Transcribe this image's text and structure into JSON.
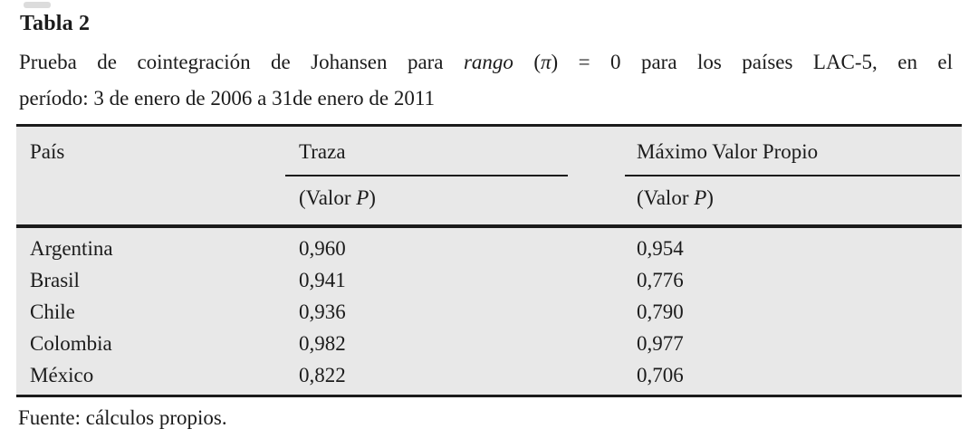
{
  "title": "Tabla 2",
  "caption": {
    "line1_parts": [
      {
        "text": "Prueba de cointegración de Johansen para ",
        "italic": false
      },
      {
        "text": "rango",
        "italic": true
      },
      {
        "text": " (",
        "italic": false
      },
      {
        "text": "π",
        "italic": true
      },
      {
        "text": ") = 0 para los países LAC-5, en el",
        "italic": false
      }
    ],
    "line2": "período: 3 de enero de 2006 a 31de enero de 2011"
  },
  "table": {
    "background": "#e8e8e8",
    "rule_color": "#1b1b1b",
    "text_color": "#1b1b1b",
    "columns": [
      {
        "header": "País"
      },
      {
        "header": "Traza"
      },
      {
        "header": "Máximo Valor Propio"
      }
    ],
    "valor_p": {
      "prefix": "(Valor ",
      "italic": "P",
      "suffix": ")"
    },
    "rows": [
      {
        "pais": "Argentina",
        "traza": "0,960",
        "max_valor_propio": "0,954"
      },
      {
        "pais": "Brasil",
        "traza": "0,941",
        "max_valor_propio": "0,776"
      },
      {
        "pais": "Chile",
        "traza": "0,936",
        "max_valor_propio": "0,790"
      },
      {
        "pais": "Colombia",
        "traza": "0,982",
        "max_valor_propio": "0,977"
      },
      {
        "pais": "México",
        "traza": "0,822",
        "max_valor_propio": "0,706"
      }
    ]
  },
  "footer": "Fuente: cálculos propios.",
  "chart_data": {
    "type": "table",
    "title": "Tabla 2 — Prueba de cointegración de Johansen para rango (π) = 0 para los países LAC-5, en el período: 3 de enero de 2006 a 31de enero de 2011",
    "columns": [
      "País",
      "Traza (Valor P)",
      "Máximo Valor Propio (Valor P)"
    ],
    "rows": [
      [
        "Argentina",
        0.96,
        0.954
      ],
      [
        "Brasil",
        0.941,
        0.776
      ],
      [
        "Chile",
        0.936,
        0.79
      ],
      [
        "Colombia",
        0.982,
        0.977
      ],
      [
        "México",
        0.822,
        0.706
      ]
    ],
    "source": "Fuente: cálculos propios."
  }
}
